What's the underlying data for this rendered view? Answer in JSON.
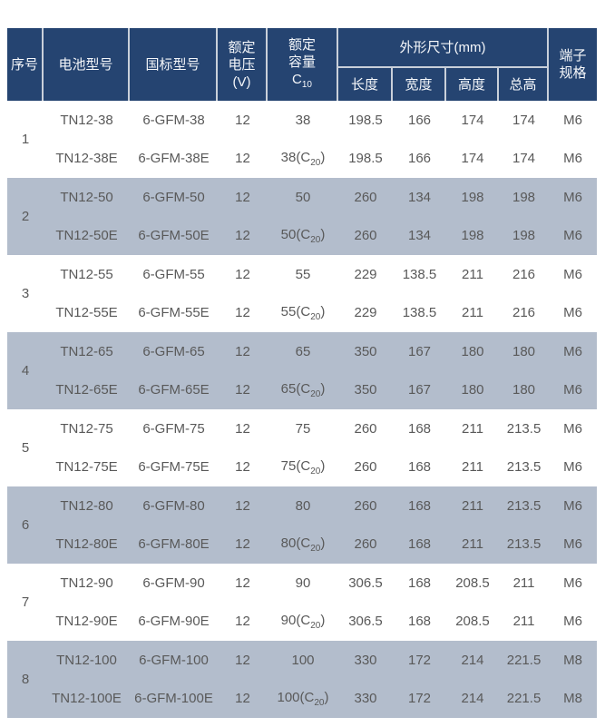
{
  "colors": {
    "header_bg": "#254471",
    "header_text": "#f5f7fa",
    "row_alt_bg": "#b3bdcc",
    "cell_text": "#595959",
    "divider": "#c9d0da",
    "page_bg": "#ffffff"
  },
  "table": {
    "header": {
      "no": "序号",
      "model": "电池型号",
      "std": "国标型号",
      "voltage_lines": [
        "额定",
        "电压",
        "(V)"
      ],
      "capacity_lines": [
        "额定",
        "容量"
      ],
      "capacity_symbol": {
        "text": "C",
        "sub": "10",
        "tail": ""
      },
      "dims_group": "外形尺寸(mm)",
      "dims": [
        "长度",
        "宽度",
        "高度",
        "总高"
      ],
      "terminal_lines": [
        "端子",
        "规格"
      ]
    },
    "groups": [
      {
        "no": "1",
        "shaded": false,
        "rows": [
          {
            "model": "TN12-38",
            "std": "6-GFM-38",
            "voltage": "12",
            "capacity": {
              "text": "38",
              "sub": null,
              "tail": ""
            },
            "length": "198.5",
            "width": "166",
            "height": "174",
            "total": "174",
            "terminal": "M6"
          },
          {
            "model": "TN12-38E",
            "std": "6-GFM-38E",
            "voltage": "12",
            "capacity": {
              "text": "38(C",
              "sub": "20",
              "tail": ")"
            },
            "length": "198.5",
            "width": "166",
            "height": "174",
            "total": "174",
            "terminal": "M6"
          }
        ]
      },
      {
        "no": "2",
        "shaded": true,
        "rows": [
          {
            "model": "TN12-50",
            "std": "6-GFM-50",
            "voltage": "12",
            "capacity": {
              "text": "50",
              "sub": null,
              "tail": ""
            },
            "length": "260",
            "width": "134",
            "height": "198",
            "total": "198",
            "terminal": "M6"
          },
          {
            "model": "TN12-50E",
            "std": "6-GFM-50E",
            "voltage": "12",
            "capacity": {
              "text": "50(C",
              "sub": "20",
              "tail": ")"
            },
            "length": "260",
            "width": "134",
            "height": "198",
            "total": "198",
            "terminal": "M6"
          }
        ]
      },
      {
        "no": "3",
        "shaded": false,
        "rows": [
          {
            "model": "TN12-55",
            "std": "6-GFM-55",
            "voltage": "12",
            "capacity": {
              "text": "55",
              "sub": null,
              "tail": ""
            },
            "length": "229",
            "width": "138.5",
            "height": "211",
            "total": "216",
            "terminal": "M6"
          },
          {
            "model": "TN12-55E",
            "std": "6-GFM-55E",
            "voltage": "12",
            "capacity": {
              "text": "55(C",
              "sub": "20",
              "tail": ")"
            },
            "length": "229",
            "width": "138.5",
            "height": "211",
            "total": "216",
            "terminal": "M6"
          }
        ]
      },
      {
        "no": "4",
        "shaded": true,
        "rows": [
          {
            "model": "TN12-65",
            "std": "6-GFM-65",
            "voltage": "12",
            "capacity": {
              "text": "65",
              "sub": null,
              "tail": ""
            },
            "length": "350",
            "width": "167",
            "height": "180",
            "total": "180",
            "terminal": "M6"
          },
          {
            "model": "TN12-65E",
            "std": "6-GFM-65E",
            "voltage": "12",
            "capacity": {
              "text": "65(C",
              "sub": "20",
              "tail": ")"
            },
            "length": "350",
            "width": "167",
            "height": "180",
            "total": "180",
            "terminal": "M6"
          }
        ]
      },
      {
        "no": "5",
        "shaded": false,
        "rows": [
          {
            "model": "TN12-75",
            "std": "6-GFM-75",
            "voltage": "12",
            "capacity": {
              "text": "75",
              "sub": null,
              "tail": ""
            },
            "length": "260",
            "width": "168",
            "height": "211",
            "total": "213.5",
            "terminal": "M6"
          },
          {
            "model": "TN12-75E",
            "std": "6-GFM-75E",
            "voltage": "12",
            "capacity": {
              "text": "75(C",
              "sub": "20",
              "tail": ")"
            },
            "length": "260",
            "width": "168",
            "height": "211",
            "total": "213.5",
            "terminal": "M6"
          }
        ]
      },
      {
        "no": "6",
        "shaded": true,
        "rows": [
          {
            "model": "TN12-80",
            "std": "6-GFM-80",
            "voltage": "12",
            "capacity": {
              "text": "80",
              "sub": null,
              "tail": ""
            },
            "length": "260",
            "width": "168",
            "height": "211",
            "total": "213.5",
            "terminal": "M6"
          },
          {
            "model": "TN12-80E",
            "std": "6-GFM-80E",
            "voltage": "12",
            "capacity": {
              "text": "80(C",
              "sub": "20",
              "tail": ")"
            },
            "length": "260",
            "width": "168",
            "height": "211",
            "total": "213.5",
            "terminal": "M6"
          }
        ]
      },
      {
        "no": "7",
        "shaded": false,
        "rows": [
          {
            "model": "TN12-90",
            "std": "6-GFM-90",
            "voltage": "12",
            "capacity": {
              "text": "90",
              "sub": null,
              "tail": ""
            },
            "length": "306.5",
            "width": "168",
            "height": "208.5",
            "total": "211",
            "terminal": "M6"
          },
          {
            "model": "TN12-90E",
            "std": "6-GFM-90E",
            "voltage": "12",
            "capacity": {
              "text": "90(C",
              "sub": "20",
              "tail": ")"
            },
            "length": "306.5",
            "width": "168",
            "height": "208.5",
            "total": "211",
            "terminal": "M6"
          }
        ]
      },
      {
        "no": "8",
        "shaded": true,
        "rows": [
          {
            "model": "TN12-100",
            "std": "6-GFM-100",
            "voltage": "12",
            "capacity": {
              "text": "100",
              "sub": null,
              "tail": ""
            },
            "length": "330",
            "width": "172",
            "height": "214",
            "total": "221.5",
            "terminal": "M8"
          },
          {
            "model": "TN12-100E",
            "std": "6-GFM-100E",
            "voltage": "12",
            "capacity": {
              "text": "100(C",
              "sub": "20",
              "tail": ")"
            },
            "length": "330",
            "width": "172",
            "height": "214",
            "total": "221.5",
            "terminal": "M8"
          }
        ]
      }
    ]
  }
}
